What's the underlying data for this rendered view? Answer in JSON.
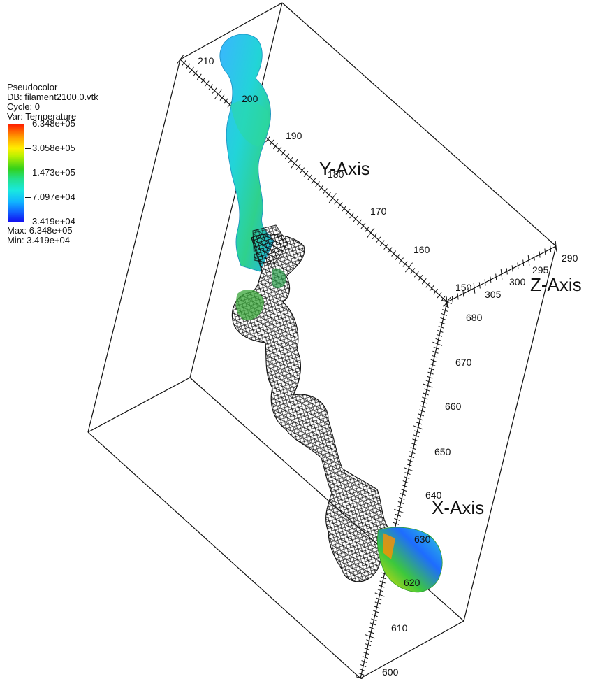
{
  "legend": {
    "plot_type": "Pseudocolor",
    "db": "DB: filament2100.0.vtk",
    "cycle": "Cycle: 0",
    "var": "Var: Temperature",
    "ticks": [
      "6.348e+05",
      "3.058e+05",
      "1.473e+05",
      "7.097e+04",
      "3.419e+04"
    ],
    "max": "Max:  6.348e+05",
    "min": "Min:  3.419e+04"
  },
  "axes": {
    "x_title": "X-Axis",
    "y_title": "Y-Axis",
    "z_title": "Z-Axis",
    "x_ticks": [
      "600",
      "610",
      "620",
      "630",
      "640",
      "650",
      "660",
      "670",
      "680"
    ],
    "y_ticks": [
      "150",
      "160",
      "170",
      "180",
      "190",
      "200",
      "210"
    ],
    "z_ticks": [
      "290",
      "295",
      "300",
      "305"
    ]
  },
  "colors": {
    "box_lines": "#111111",
    "surface_cyan": "#27c9e6",
    "surface_green": "#34c85a",
    "surface_blue": "#1a55e8",
    "wire": "#111111"
  }
}
